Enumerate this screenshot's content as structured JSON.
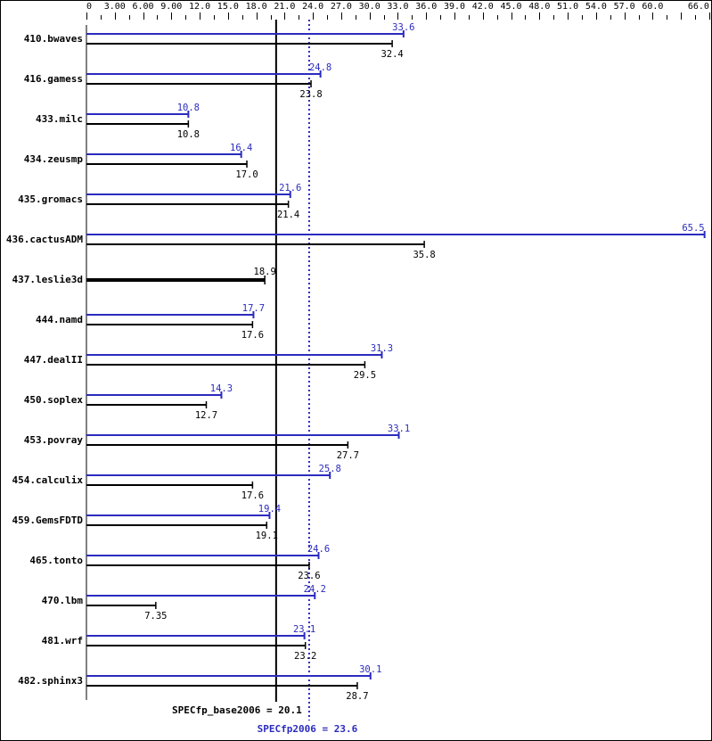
{
  "chart_data": {
    "type": "bar",
    "orientation": "horizontal",
    "xlim": [
      0,
      66
    ],
    "tick_labels": [
      "0",
      "3.00",
      "6.00",
      "9.00",
      "12.0",
      "15.0",
      "18.0",
      "21.0",
      "24.0",
      "27.0",
      "30.0",
      "33.0",
      "36.0",
      "39.0",
      "42.0",
      "45.0",
      "48.0",
      "51.0",
      "54.0",
      "57.0",
      "60.0",
      "66.0"
    ],
    "tick_values": [
      0,
      3,
      6,
      9,
      12,
      15,
      18,
      21,
      24,
      27,
      30,
      33,
      36,
      39,
      42,
      45,
      48,
      51,
      54,
      57,
      60,
      66
    ],
    "categories": [
      "410.bwaves",
      "416.gamess",
      "433.milc",
      "434.zeusmp",
      "435.gromacs",
      "436.cactusADM",
      "437.leslie3d",
      "444.namd",
      "447.dealII",
      "450.soplex",
      "453.povray",
      "454.calculix",
      "459.GemsFDTD",
      "465.tonto",
      "470.lbm",
      "481.wrf",
      "482.sphinx3"
    ],
    "series": [
      {
        "key": "peak",
        "values": [
          33.6,
          24.8,
          10.8,
          16.4,
          21.6,
          65.5,
          null,
          17.7,
          31.3,
          14.3,
          33.1,
          25.8,
          19.4,
          24.6,
          24.2,
          23.1,
          30.1
        ]
      },
      {
        "key": "base",
        "values": [
          32.4,
          23.8,
          10.8,
          17.0,
          21.4,
          35.8,
          18.9,
          17.6,
          29.5,
          12.7,
          27.7,
          17.6,
          19.1,
          23.6,
          7.35,
          23.2,
          28.7
        ]
      }
    ],
    "base_labels": [
      "32.4",
      "23.8",
      "10.8",
      "17.0",
      "21.4",
      "35.8",
      "18.9",
      "17.6",
      "29.5",
      "12.7",
      "27.7",
      "17.6",
      "19.1",
      "23.6",
      "7.35",
      "23.2",
      "28.7"
    ],
    "peak_labels": [
      "33.6",
      "24.8",
      "10.8",
      "16.4",
      "21.6",
      "65.5",
      "",
      "17.7",
      "31.3",
      "14.3",
      "33.1",
      "25.8",
      "19.4",
      "24.6",
      "24.2",
      "23.1",
      "30.1"
    ],
    "reference_lines": [
      {
        "label": "SPECfp_base2006 = 20.1",
        "value": 20.1,
        "color": "#000000",
        "style": "solid"
      },
      {
        "label": "SPECfp2006 = 23.6",
        "value": 23.6,
        "color": "#2b2bbf",
        "style": "dotted"
      }
    ],
    "colors": {
      "base": "#000000",
      "peak": "#2b2bbf"
    }
  }
}
